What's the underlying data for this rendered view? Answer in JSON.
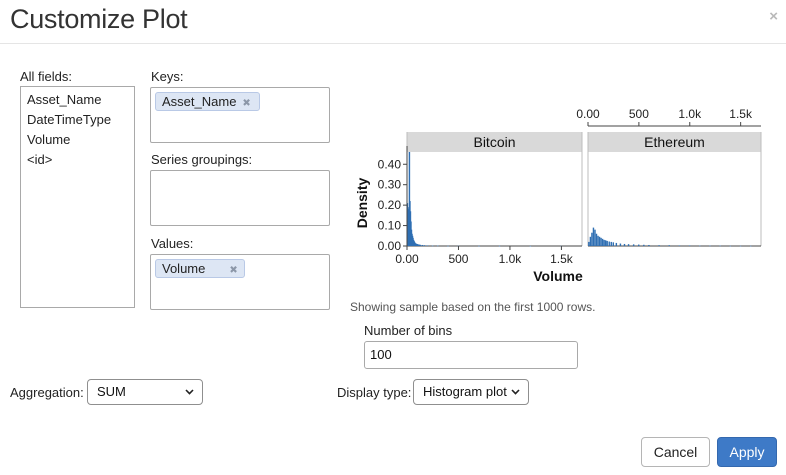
{
  "dialog": {
    "title": "Customize Plot",
    "close": "×"
  },
  "fields": {
    "label": "All fields:",
    "items": [
      "Asset_Name",
      "DateTimeType",
      "Volume",
      "<id>"
    ]
  },
  "keys": {
    "label": "Keys:",
    "chips": [
      "Asset_Name"
    ]
  },
  "series_groupings": {
    "label": "Series groupings:",
    "chips": []
  },
  "values": {
    "label": "Values:",
    "chips": [
      "Volume"
    ]
  },
  "chip_remove_glyph": "✖",
  "aggregation": {
    "label": "Aggregation:",
    "selected": "SUM"
  },
  "display_type": {
    "label": "Display type:",
    "selected": "Histogram plot"
  },
  "bins": {
    "label": "Number of bins",
    "value": "100"
  },
  "sample_note": "Showing sample based on the first 1000 rows.",
  "buttons": {
    "cancel": "Cancel",
    "apply": "Apply"
  },
  "colors": {
    "bar": "#2f6fb3",
    "facet_header": "#d9d9d9",
    "apply": "#3e7ac7"
  },
  "chart_data": {
    "type": "bar",
    "xlabel": "Volume",
    "ylabel": "Density",
    "bins": 100,
    "x_range": [
      0,
      1700
    ],
    "y_range": [
      0,
      0.46
    ],
    "y_ticks": [
      0.0,
      0.1,
      0.2,
      0.3,
      0.4
    ],
    "y_tick_labels": [
      "0.00",
      "0.10",
      "0.20",
      "0.30",
      "0.40"
    ],
    "x_ticks": [
      0,
      500,
      1000,
      1500
    ],
    "x_tick_labels": [
      "0.00",
      "500",
      "1.0k",
      "1.5k"
    ],
    "facets": [
      {
        "name": "Bitcoin",
        "x": [
          5,
          10,
          15,
          20,
          25,
          30,
          35,
          40,
          45,
          50,
          55,
          60,
          65,
          70,
          75,
          80,
          90,
          100,
          110,
          120,
          130,
          150,
          170,
          200,
          250,
          300,
          400,
          500,
          700,
          900,
          1200,
          1500
        ],
        "density": [
          0.21,
          0.18,
          0.12,
          0.19,
          0.46,
          0.22,
          0.17,
          0.12,
          0.08,
          0.06,
          0.05,
          0.04,
          0.03,
          0.025,
          0.02,
          0.015,
          0.012,
          0.01,
          0.008,
          0.007,
          0.006,
          0.005,
          0.004,
          0.003,
          0.002,
          0.002,
          0.001,
          0.001,
          0.001,
          0.001,
          0.0005,
          0.0005
        ]
      },
      {
        "name": "Ethereum",
        "x": [
          10,
          25,
          40,
          55,
          70,
          85,
          100,
          115,
          130,
          145,
          160,
          175,
          190,
          210,
          230,
          250,
          280,
          320,
          360,
          400,
          450,
          500,
          550,
          600,
          700,
          800,
          900,
          1000,
          1100,
          1200,
          1300,
          1400,
          1500,
          1600
        ],
        "density": [
          0.02,
          0.045,
          0.065,
          0.09,
          0.08,
          0.06,
          0.05,
          0.045,
          0.04,
          0.035,
          0.03,
          0.028,
          0.025,
          0.022,
          0.02,
          0.018,
          0.015,
          0.012,
          0.01,
          0.009,
          0.008,
          0.007,
          0.006,
          0.005,
          0.004,
          0.004,
          0.003,
          0.003,
          0.002,
          0.002,
          0.002,
          0.001,
          0.001,
          0.001
        ]
      }
    ]
  }
}
